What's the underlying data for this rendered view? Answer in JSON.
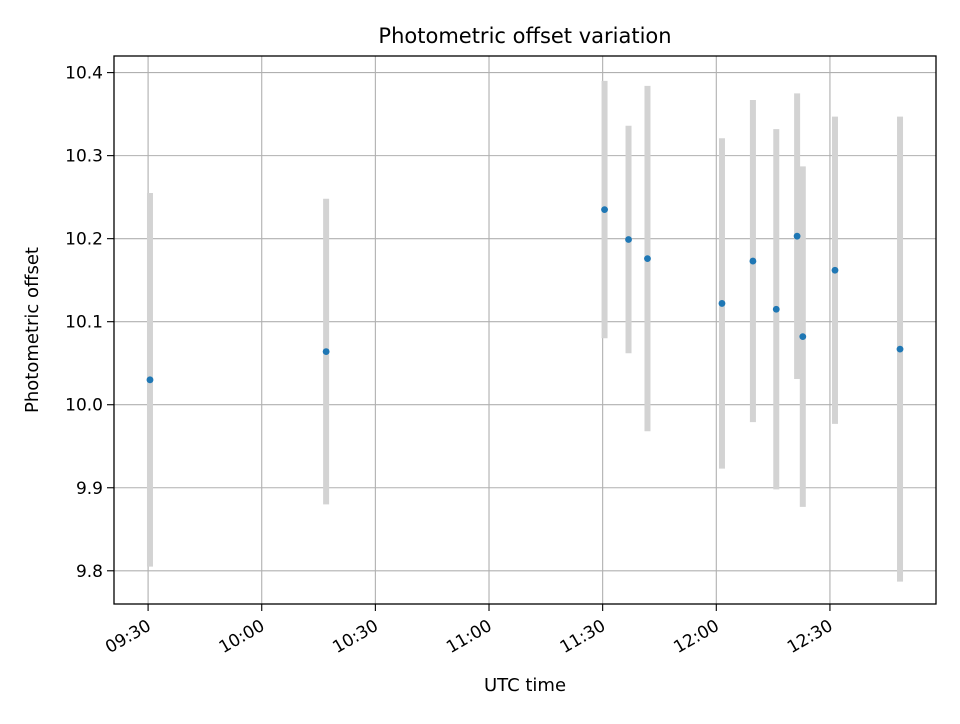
{
  "chart_data": {
    "type": "scatter",
    "title": "Photometric offset variation",
    "xlabel": "UTC time",
    "ylabel": "Photometric offset",
    "xlim": [
      "09:21",
      "12:58"
    ],
    "ylim": [
      9.76,
      10.42
    ],
    "x_ticks": [
      "09:30",
      "10:00",
      "10:30",
      "11:00",
      "11:30",
      "12:00",
      "12:30"
    ],
    "y_ticks": [
      9.8,
      9.9,
      10.0,
      10.1,
      10.2,
      10.3,
      10.4
    ],
    "grid": true,
    "legend": "none",
    "colors": {
      "point": "#1f77b4",
      "errorbar": "#d3d3d3",
      "grid": "#b0b0b0"
    },
    "series": [
      {
        "points": [
          {
            "x": "09:30:30",
            "y": 10.03,
            "err": 0.225
          },
          {
            "x": "10:17:00",
            "y": 10.064,
            "err": 0.184
          },
          {
            "x": "11:30:30",
            "y": 10.235,
            "err": 0.155
          },
          {
            "x": "11:36:50",
            "y": 10.199,
            "err": 0.137
          },
          {
            "x": "11:41:50",
            "y": 10.176,
            "err": 0.208
          },
          {
            "x": "12:01:30",
            "y": 10.122,
            "err": 0.199
          },
          {
            "x": "12:09:40",
            "y": 10.173,
            "err": 0.194
          },
          {
            "x": "12:15:50",
            "y": 10.115,
            "err": 0.217
          },
          {
            "x": "12:21:20",
            "y": 10.203,
            "err": 0.172
          },
          {
            "x": "12:22:50",
            "y": 10.082,
            "err": 0.205
          },
          {
            "x": "12:31:20",
            "y": 10.162,
            "err": 0.185
          },
          {
            "x": "12:48:30",
            "y": 10.067,
            "err": 0.28
          }
        ]
      }
    ]
  }
}
